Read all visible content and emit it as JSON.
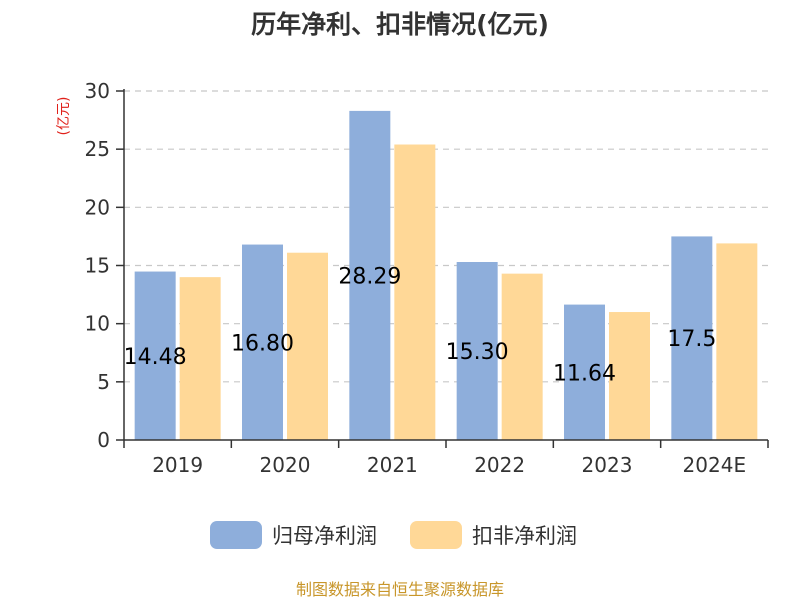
{
  "chart_data": {
    "type": "bar",
    "title": "历年净利、扣非情况(亿元)",
    "ylabel": "(亿元)",
    "xlabel": "",
    "categories": [
      "2019",
      "2020",
      "2021",
      "2022",
      "2023",
      "2024E"
    ],
    "series": [
      {
        "name": "归母净利润",
        "values": [
          14.48,
          16.8,
          28.29,
          15.3,
          11.64,
          17.5
        ],
        "color": "#8eaedb"
      },
      {
        "name": "扣非净利润",
        "values": [
          14.0,
          16.1,
          25.4,
          14.3,
          11.0,
          16.9
        ],
        "color": "#ffd897"
      }
    ],
    "data_labels": [
      "14.48",
      "16.80",
      "28.29",
      "15.30",
      "11.64",
      "17.5"
    ],
    "ylim": [
      0,
      30
    ],
    "yticks": [
      0,
      5,
      10,
      15,
      20,
      25,
      30
    ],
    "grid": true,
    "legend_position": "bottom"
  },
  "source_text": "制图数据来自恒生聚源数据库"
}
